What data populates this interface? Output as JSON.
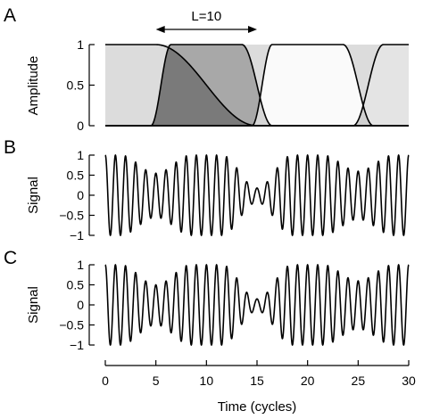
{
  "chart_data": [
    {
      "panel": "A",
      "type": "area",
      "ylabel": "Amplitude",
      "xlim": [
        0,
        30
      ],
      "ylim": [
        0,
        1
      ],
      "yticks": [
        0,
        0.5,
        1
      ],
      "ytick_labels": [
        "0",
        "0.5",
        "1"
      ],
      "annotation": {
        "text": "L=10",
        "from_x": 5,
        "to_x": 15
      },
      "series": [
        {
          "shape": "window",
          "plateau": [
            0,
            5
          ],
          "rise": [
            -5,
            -0.5
          ],
          "fall": [
            5,
            15
          ],
          "fill": "#dcdcdc"
        },
        {
          "shape": "window",
          "plateau": [
            6.5,
            13.5
          ],
          "rise": [
            4.5,
            6.5
          ],
          "fall": [
            13.5,
            16.5
          ],
          "fill": "#a8a8a8"
        },
        {
          "shape": "window",
          "plateau": [
            16.5,
            23.5
          ],
          "rise": [
            14.5,
            16.5
          ],
          "fall": [
            23.5,
            26.5
          ],
          "fill": "#fafafa"
        },
        {
          "shape": "window",
          "plateau": [
            27.5,
            35
          ],
          "rise": [
            24.5,
            27.5
          ],
          "fall": [
            35,
            40
          ],
          "fill": "#e4e4e4"
        }
      ],
      "overlap_fill": "#7a7a7a",
      "background_fill": "#dcdcdc"
    },
    {
      "panel": "B",
      "type": "line",
      "ylabel": "Signal",
      "xlim": [
        0,
        30
      ],
      "ylim": [
        -1,
        1
      ],
      "yticks": [
        -1,
        -0.5,
        0,
        0.5,
        1
      ],
      "ytick_labels": [
        "−1",
        "−0.5",
        "0",
        "0.5",
        "1"
      ],
      "cycles_per_unit": 1,
      "envelope_dips": [
        {
          "center": 5,
          "min_amplitude": 0.55
        },
        {
          "center": 15,
          "min_amplitude": 0.18
        },
        {
          "center": 25,
          "min_amplitude": 0.6
        }
      ]
    },
    {
      "panel": "C",
      "type": "line",
      "ylabel": "Signal",
      "xlim": [
        0,
        30
      ],
      "ylim": [
        -1,
        1
      ],
      "yticks": [
        -1,
        -0.5,
        0,
        0.5,
        1
      ],
      "ytick_labels": [
        "−1",
        "−0.5",
        "0",
        "0.5",
        "1"
      ],
      "xlabel": "Time (cycles)",
      "xticks": [
        0,
        5,
        10,
        15,
        20,
        25,
        30
      ],
      "xtick_labels": [
        "0",
        "5",
        "10",
        "15",
        "20",
        "25",
        "30"
      ],
      "cycles_per_unit": 1,
      "envelope_dips": [
        {
          "center": 5,
          "min_amplitude": 0.5
        },
        {
          "center": 15,
          "min_amplitude": 0.15
        },
        {
          "center": 25,
          "min_amplitude": 0.6
        }
      ]
    }
  ]
}
